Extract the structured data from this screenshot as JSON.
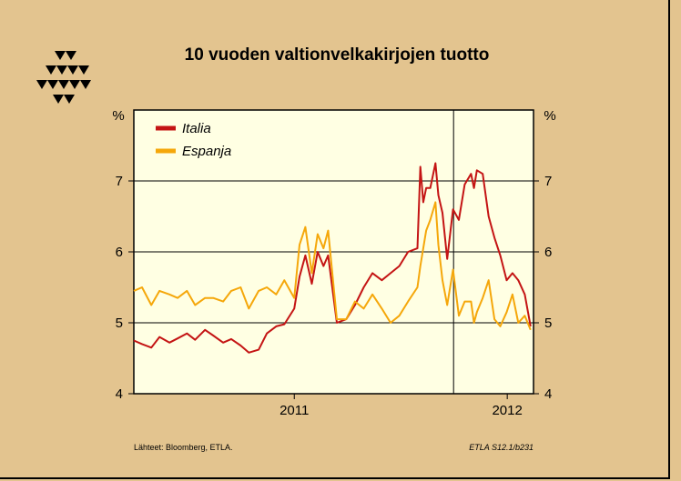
{
  "chart_data": {
    "type": "line",
    "title": "10 vuoden valtionvelkakirjojen tuotto",
    "ylabel_left": "%",
    "ylabel_right": "%",
    "ylim": [
      4,
      8
    ],
    "yticks": [
      4,
      5,
      6,
      7
    ],
    "xlim": [
      "2010-04-01",
      "2012-02-15"
    ],
    "xtick_labels": [
      "2011",
      "2012"
    ],
    "xtick_positions": [
      "2011-01-01",
      "2012-01-01"
    ],
    "vertical_marker": "2011-10-01",
    "grid": true,
    "legend_position": "top-left",
    "series": [
      {
        "name": "Italia",
        "color": "#c41414",
        "points": [
          [
            "2010-04-01",
            4.75
          ],
          [
            "2010-04-15",
            4.7
          ],
          [
            "2010-05-01",
            4.65
          ],
          [
            "2010-05-15",
            4.8
          ],
          [
            "2010-06-01",
            4.72
          ],
          [
            "2010-06-15",
            4.78
          ],
          [
            "2010-07-01",
            4.85
          ],
          [
            "2010-07-15",
            4.76
          ],
          [
            "2010-08-01",
            4.9
          ],
          [
            "2010-08-15",
            4.82
          ],
          [
            "2010-09-01",
            4.72
          ],
          [
            "2010-09-15",
            4.77
          ],
          [
            "2010-10-01",
            4.68
          ],
          [
            "2010-10-15",
            4.58
          ],
          [
            "2010-11-01",
            4.62
          ],
          [
            "2010-11-15",
            4.85
          ],
          [
            "2010-12-01",
            4.95
          ],
          [
            "2010-12-15",
            4.98
          ],
          [
            "2011-01-01",
            5.2
          ],
          [
            "2011-01-10",
            5.65
          ],
          [
            "2011-01-20",
            5.95
          ],
          [
            "2011-01-31",
            5.55
          ],
          [
            "2011-02-10",
            6.0
          ],
          [
            "2011-02-20",
            5.8
          ],
          [
            "2011-02-28",
            5.95
          ],
          [
            "2011-03-15",
            5.0
          ],
          [
            "2011-03-31",
            5.05
          ],
          [
            "2011-04-15",
            5.25
          ],
          [
            "2011-04-30",
            5.5
          ],
          [
            "2011-05-15",
            5.7
          ],
          [
            "2011-05-31",
            5.6
          ],
          [
            "2011-06-15",
            5.7
          ],
          [
            "2011-06-30",
            5.8
          ],
          [
            "2011-07-15",
            6.0
          ],
          [
            "2011-07-31",
            6.05
          ],
          [
            "2011-08-05",
            7.2
          ],
          [
            "2011-08-10",
            6.7
          ],
          [
            "2011-08-15",
            6.9
          ],
          [
            "2011-08-22",
            6.9
          ],
          [
            "2011-08-31",
            7.25
          ],
          [
            "2011-09-05",
            6.8
          ],
          [
            "2011-09-12",
            6.55
          ],
          [
            "2011-09-20",
            5.9
          ],
          [
            "2011-09-30",
            6.6
          ],
          [
            "2011-10-10",
            6.45
          ],
          [
            "2011-10-20",
            6.95
          ],
          [
            "2011-10-31",
            7.1
          ],
          [
            "2011-11-05",
            6.9
          ],
          [
            "2011-11-10",
            7.15
          ],
          [
            "2011-11-20",
            7.1
          ],
          [
            "2011-11-30",
            6.5
          ],
          [
            "2011-12-10",
            6.2
          ],
          [
            "2011-12-20",
            5.95
          ],
          [
            "2011-12-31",
            5.6
          ],
          [
            "2012-01-10",
            5.7
          ],
          [
            "2012-01-20",
            5.6
          ],
          [
            "2012-01-31",
            5.4
          ],
          [
            "2012-02-10",
            4.95
          ]
        ]
      },
      {
        "name": "Espanja",
        "color": "#f5a70a",
        "points": [
          [
            "2010-04-01",
            5.45
          ],
          [
            "2010-04-15",
            5.5
          ],
          [
            "2010-05-01",
            5.25
          ],
          [
            "2010-05-15",
            5.45
          ],
          [
            "2010-06-01",
            5.4
          ],
          [
            "2010-06-15",
            5.35
          ],
          [
            "2010-07-01",
            5.45
          ],
          [
            "2010-07-15",
            5.25
          ],
          [
            "2010-08-01",
            5.35
          ],
          [
            "2010-08-15",
            5.35
          ],
          [
            "2010-09-01",
            5.3
          ],
          [
            "2010-09-15",
            5.45
          ],
          [
            "2010-10-01",
            5.5
          ],
          [
            "2010-10-15",
            5.2
          ],
          [
            "2010-11-01",
            5.45
          ],
          [
            "2010-11-15",
            5.5
          ],
          [
            "2010-12-01",
            5.4
          ],
          [
            "2010-12-15",
            5.6
          ],
          [
            "2011-01-01",
            5.35
          ],
          [
            "2011-01-10",
            6.1
          ],
          [
            "2011-01-20",
            6.35
          ],
          [
            "2011-01-31",
            5.7
          ],
          [
            "2011-02-10",
            6.25
          ],
          [
            "2011-02-20",
            6.05
          ],
          [
            "2011-02-28",
            6.3
          ],
          [
            "2011-03-15",
            5.05
          ],
          [
            "2011-03-31",
            5.05
          ],
          [
            "2011-04-15",
            5.3
          ],
          [
            "2011-04-30",
            5.2
          ],
          [
            "2011-05-15",
            5.4
          ],
          [
            "2011-05-31",
            5.2
          ],
          [
            "2011-06-15",
            5.0
          ],
          [
            "2011-06-30",
            5.1
          ],
          [
            "2011-07-15",
            5.3
          ],
          [
            "2011-07-31",
            5.5
          ],
          [
            "2011-08-05",
            5.8
          ],
          [
            "2011-08-15",
            6.3
          ],
          [
            "2011-08-22",
            6.45
          ],
          [
            "2011-08-31",
            6.7
          ],
          [
            "2011-09-05",
            6.1
          ],
          [
            "2011-09-12",
            5.6
          ],
          [
            "2011-09-20",
            5.25
          ],
          [
            "2011-09-30",
            5.75
          ],
          [
            "2011-10-10",
            5.1
          ],
          [
            "2011-10-20",
            5.3
          ],
          [
            "2011-10-31",
            5.3
          ],
          [
            "2011-11-05",
            5.0
          ],
          [
            "2011-11-10",
            5.15
          ],
          [
            "2011-11-20",
            5.35
          ],
          [
            "2011-11-30",
            5.6
          ],
          [
            "2011-12-10",
            5.05
          ],
          [
            "2011-12-20",
            4.95
          ],
          [
            "2011-12-31",
            5.15
          ],
          [
            "2012-01-10",
            5.4
          ],
          [
            "2012-01-20",
            5.0
          ],
          [
            "2012-01-31",
            5.1
          ],
          [
            "2012-02-10",
            4.9
          ]
        ]
      }
    ]
  },
  "footer": {
    "source": "Lähteet:   Bloomberg, ETLA.",
    "code": "ETLA S12.1/b231"
  }
}
